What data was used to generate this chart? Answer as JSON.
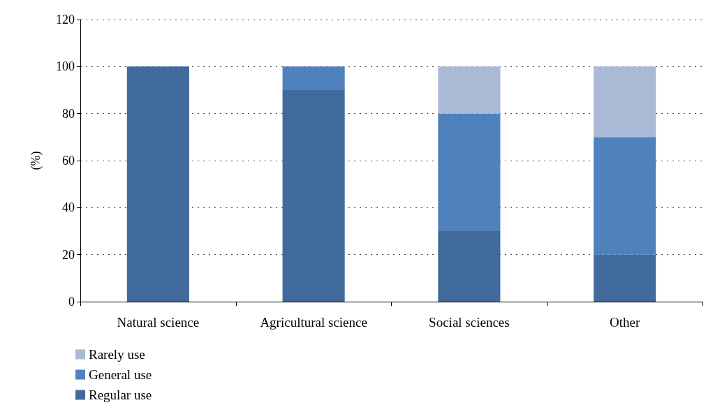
{
  "chart_data": {
    "type": "bar",
    "stacked": true,
    "ylabel": "(%)",
    "categories": [
      "Natural science",
      "Agricultural science",
      "Social sciences",
      "Other"
    ],
    "series": [
      {
        "name": "Regular use",
        "color": "#416a9d",
        "values": [
          100,
          90,
          30,
          20
        ]
      },
      {
        "name": "General use",
        "color": "#4f81bd",
        "values": [
          0,
          10,
          50,
          50
        ]
      },
      {
        "name": "Rarely use",
        "color": "#a9b9d6",
        "values": [
          0,
          0,
          20,
          30
        ]
      }
    ],
    "ylim": [
      0,
      120
    ],
    "yticks": [
      0,
      20,
      40,
      60,
      80,
      100,
      120
    ],
    "grid": "y",
    "legend": "bottom left"
  }
}
